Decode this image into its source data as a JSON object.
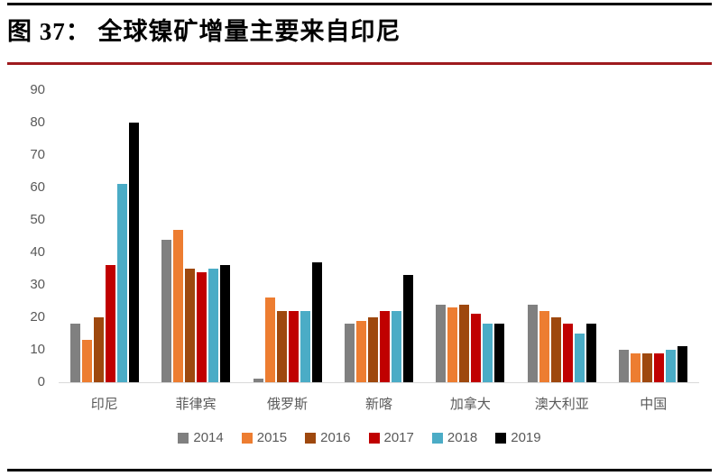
{
  "header": {
    "title": "图 37： 全球镍矿增量主要来自印尼"
  },
  "chart_data": {
    "type": "bar",
    "title": "图 37： 全球镍矿增量主要来自印尼",
    "categories": [
      "印尼",
      "菲律宾",
      "俄罗斯",
      "新喀",
      "加拿大",
      "澳大利亚",
      "中国"
    ],
    "series": [
      {
        "name": "2014",
        "color": "#808080",
        "values": [
          18,
          44,
          1,
          18,
          24,
          24,
          10
        ]
      },
      {
        "name": "2015",
        "color": "#ED7D31",
        "values": [
          13,
          47,
          26,
          19,
          23,
          22,
          9
        ]
      },
      {
        "name": "2016",
        "color": "#9E480E",
        "values": [
          20,
          35,
          22,
          20,
          24,
          20,
          9
        ]
      },
      {
        "name": "2017",
        "color": "#C00000",
        "values": [
          36,
          34,
          22,
          22,
          21,
          18,
          9
        ]
      },
      {
        "name": "2018",
        "color": "#4BACC6",
        "values": [
          61,
          35,
          22,
          22,
          18,
          15,
          10
        ]
      },
      {
        "name": "2019",
        "color": "#000000",
        "values": [
          80,
          36,
          37,
          33,
          18,
          18,
          11
        ]
      }
    ],
    "xlabel": "",
    "ylabel": "",
    "ylim": [
      0,
      90
    ],
    "ytick_step": 10,
    "grid": false,
    "legend_position": "bottom",
    "accent_rule_color": "#9E1B1E",
    "axis_label_color": "#595959",
    "baseline_color": "#D9D9D9"
  }
}
